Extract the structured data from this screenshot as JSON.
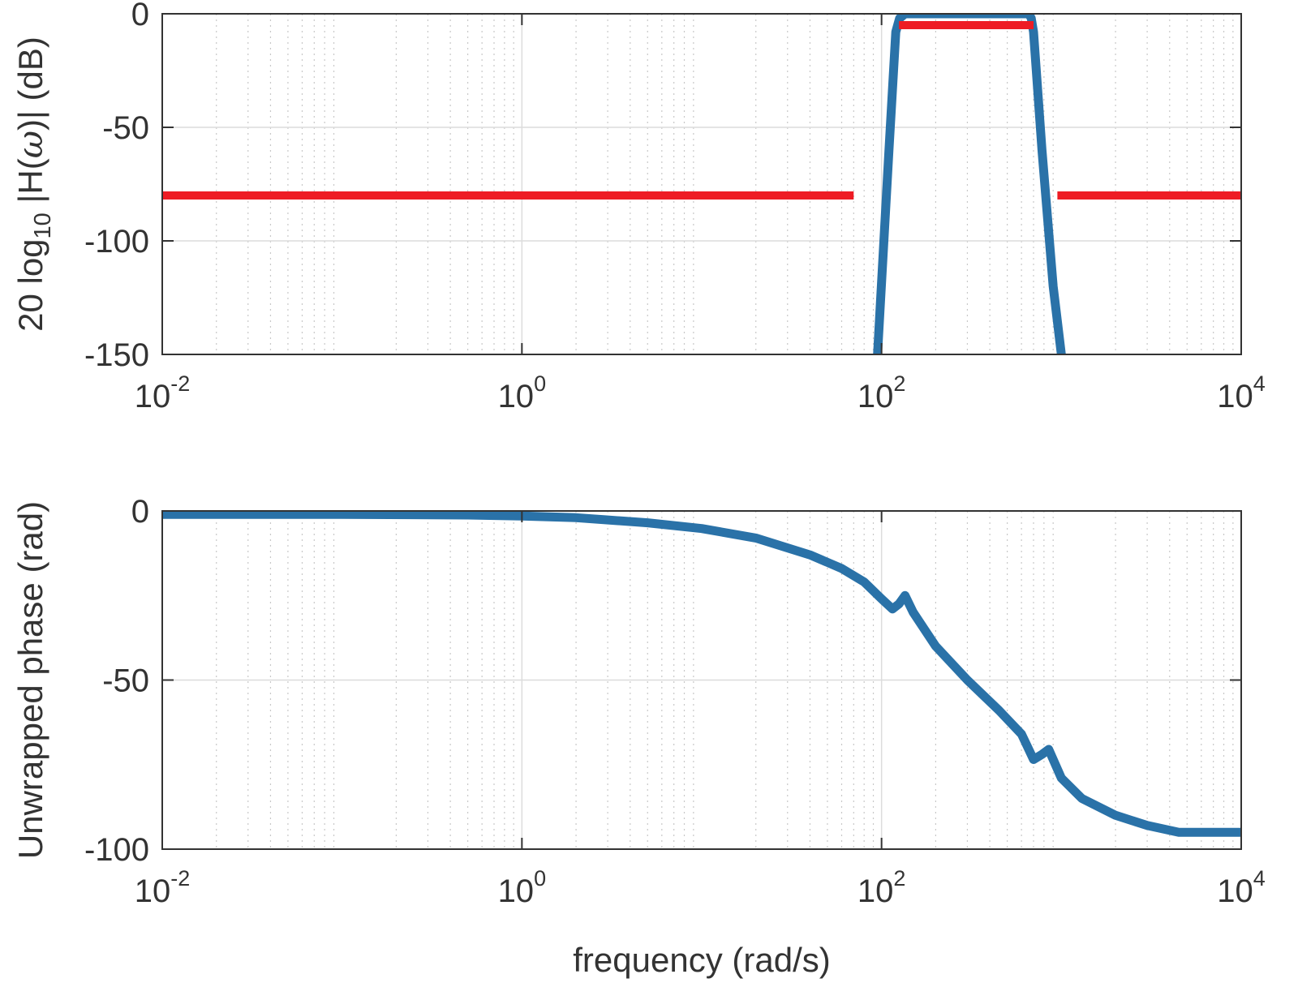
{
  "colors": {
    "response": "#2a72a8",
    "spec": "#ee1c24",
    "axis": "#333333",
    "grid_major": "#dcdcdc",
    "grid_minor": "#c8c8c8"
  },
  "chart_data": [
    {
      "type": "line",
      "xscale": "log",
      "xlim": [
        0.01,
        10000
      ],
      "ylim": [
        -150,
        0
      ],
      "grid": "on",
      "ylabel_parts": [
        "20 log",
        "10",
        " |H(",
        "ω",
        ")| (dB)"
      ],
      "xticks": [
        0.01,
        1,
        100,
        10000
      ],
      "xtick_labels": [
        [
          "10",
          "-2"
        ],
        [
          "10",
          "0"
        ],
        [
          "10",
          "2"
        ],
        [
          "10",
          "4"
        ]
      ],
      "yticks": [
        0,
        -50,
        -100,
        -150
      ],
      "ytick_labels": [
        "0",
        "-50",
        "-100",
        "-150"
      ],
      "series": [
        {
          "role": "response",
          "x": [
            95,
            110,
            120,
            126,
            135,
            200,
            400,
            600,
            660,
            680,
            700,
            780,
            900,
            1000
          ],
          "y": [
            -150,
            -60,
            -8,
            -2,
            0,
            0,
            0,
            0,
            0,
            -2,
            -8,
            -60,
            -120,
            -150
          ]
        },
        {
          "role": "spec",
          "x": [
            0.01,
            70
          ],
          "y": [
            -80,
            -80
          ]
        },
        {
          "role": "spec",
          "x": [
            125,
            700
          ],
          "y": [
            -5,
            -5
          ]
        },
        {
          "role": "spec",
          "x": [
            950,
            10000
          ],
          "y": [
            -80,
            -80
          ]
        }
      ]
    },
    {
      "type": "line",
      "xscale": "log",
      "xlim": [
        0.01,
        10000
      ],
      "ylim": [
        -100,
        0
      ],
      "grid": "on",
      "ylabel": "Unwrapped phase (rad)",
      "xlabel": "frequency (rad/s)",
      "xticks": [
        0.01,
        1,
        100,
        10000
      ],
      "xtick_labels": [
        [
          "10",
          "-2"
        ],
        [
          "10",
          "0"
        ],
        [
          "10",
          "2"
        ],
        [
          "10",
          "4"
        ]
      ],
      "yticks": [
        0,
        -50,
        -100
      ],
      "ytick_labels": [
        "0",
        "-50",
        "-100"
      ],
      "series": [
        {
          "role": "response",
          "x": [
            0.01,
            0.1,
            0.5,
            1,
            2,
            5,
            10,
            20,
            40,
            60,
            80,
            100,
            115,
            125,
            135,
            150,
            200,
            300,
            450,
            600,
            700,
            780,
            850,
            1000,
            1300,
            2000,
            3000,
            4500,
            6000,
            10000
          ],
          "y": [
            -1,
            -1,
            -1.2,
            -1.5,
            -2,
            -3.5,
            -5.2,
            -8,
            -13,
            -17,
            -21,
            -26,
            -29,
            -27.5,
            -25,
            -30,
            -40,
            -50,
            -59,
            -66,
            -73.5,
            -72,
            -70.5,
            -79,
            -85,
            -90,
            -93,
            -95,
            -95,
            -95
          ]
        }
      ]
    }
  ]
}
